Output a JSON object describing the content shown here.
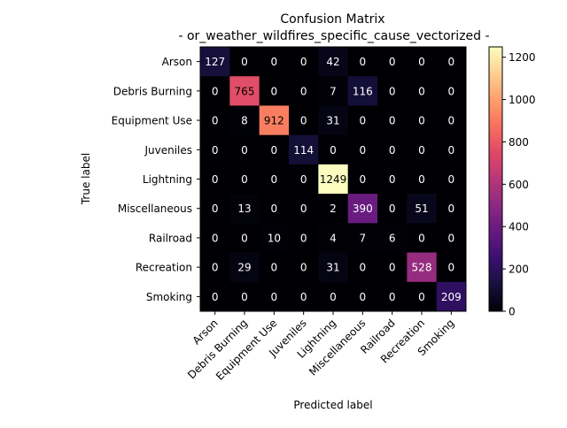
{
  "chart_data": {
    "type": "heatmap",
    "title": "Confusion Matrix",
    "subtitle": "- or_weather_wildfires_specific_cause_vectorized -",
    "xlabel": "Predicted label",
    "ylabel": "True label",
    "labels": [
      "Arson",
      "Debris Burning",
      "Equipment Use",
      "Juveniles",
      "Lightning",
      "Miscellaneous",
      "Railroad",
      "Recreation",
      "Smoking"
    ],
    "matrix": [
      [
        127,
        0,
        0,
        0,
        42,
        0,
        0,
        0,
        0
      ],
      [
        0,
        765,
        0,
        0,
        7,
        116,
        0,
        0,
        0
      ],
      [
        0,
        8,
        912,
        0,
        31,
        0,
        0,
        0,
        0
      ],
      [
        0,
        0,
        0,
        114,
        0,
        0,
        0,
        0,
        0
      ],
      [
        0,
        0,
        0,
        0,
        1249,
        0,
        0,
        0,
        0
      ],
      [
        0,
        13,
        0,
        0,
        2,
        390,
        0,
        51,
        0
      ],
      [
        0,
        0,
        10,
        0,
        4,
        7,
        6,
        0,
        0
      ],
      [
        0,
        29,
        0,
        0,
        31,
        0,
        0,
        528,
        0
      ],
      [
        0,
        0,
        0,
        0,
        0,
        0,
        0,
        0,
        209
      ]
    ],
    "colormap": "magma",
    "vmin": 0,
    "vmax": 1249,
    "colorbar_ticks": [
      0,
      200,
      400,
      600,
      800,
      1000,
      1200
    ]
  }
}
